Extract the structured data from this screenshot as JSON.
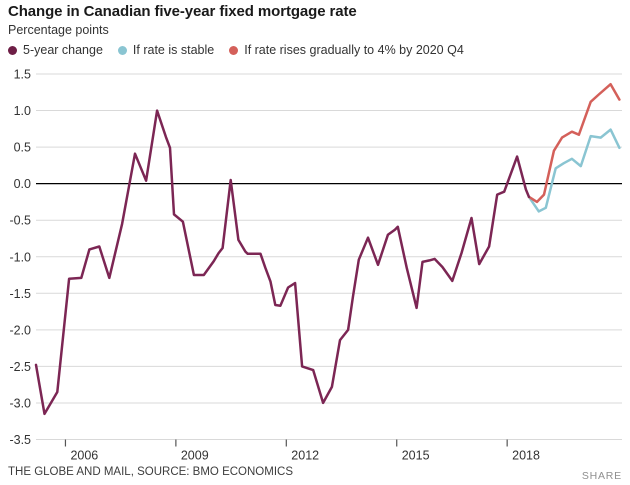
{
  "header": {
    "title": "Change in Canadian five-year fixed mortgage rate",
    "subtitle": "Percentage points"
  },
  "legend": [
    {
      "label": "5-year change",
      "color": "#6e1e46"
    },
    {
      "label": "If rate is stable",
      "color": "#8ac5d2"
    },
    {
      "label": "If rate rises gradually to 4% by 2020 Q4",
      "color": "#d4605a"
    }
  ],
  "footer": {
    "source": "THE GLOBE AND MAIL, SOURCE: BMO ECONOMICS",
    "share_label": "SHARE"
  },
  "chart_data": {
    "type": "line",
    "title": "Change in Canadian five-year fixed mortgage rate",
    "ylabel": "Percentage points",
    "xlim": [
      2005.2,
      2021.12
    ],
    "ylim": [
      -3.5,
      1.5
    ],
    "grid": "horizontal",
    "zero_line_color": "#000000",
    "gridline_color": "#d9d9d9",
    "tick_color": "#555555",
    "label_color": "#333333",
    "y_ticks": [
      {
        "v": 1.5,
        "label": "1.5"
      },
      {
        "v": 1.0,
        "label": "1.0"
      },
      {
        "v": 0.5,
        "label": "0.5"
      },
      {
        "v": 0.0,
        "label": "0.0"
      },
      {
        "v": -0.5,
        "label": "-0.5"
      },
      {
        "v": -1.0,
        "label": "-1.0"
      },
      {
        "v": -1.5,
        "label": "-1.5"
      },
      {
        "v": -2.0,
        "label": "-2.0"
      },
      {
        "v": -2.5,
        "label": "-2.5"
      },
      {
        "v": -3.0,
        "label": "-3.0"
      },
      {
        "v": -3.5,
        "label": "-3.5"
      }
    ],
    "x_ticks": [
      {
        "v": 2006,
        "label": "2006"
      },
      {
        "v": 2009,
        "label": "2009"
      },
      {
        "v": 2012,
        "label": "2012"
      },
      {
        "v": 2015,
        "label": "2015"
      },
      {
        "v": 2018,
        "label": "2018"
      }
    ],
    "series": [
      {
        "name": "If rate is stable",
        "color": "#8ac5d2",
        "points": [
          [
            2018.59,
            -0.18
          ],
          [
            2018.86,
            -0.38
          ],
          [
            2019.05,
            -0.33
          ],
          [
            2019.32,
            0.21
          ],
          [
            2019.54,
            0.28
          ],
          [
            2019.76,
            0.34
          ],
          [
            2020.0,
            0.24
          ],
          [
            2020.27,
            0.65
          ],
          [
            2020.54,
            0.63
          ],
          [
            2020.81,
            0.74
          ],
          [
            2021.05,
            0.49
          ]
        ]
      },
      {
        "name": "If rate rises gradually to 4% by 2020 Q4",
        "color": "#d4605a",
        "points": [
          [
            2018.59,
            -0.18
          ],
          [
            2018.81,
            -0.25
          ],
          [
            2019.0,
            -0.15
          ],
          [
            2019.27,
            0.45
          ],
          [
            2019.49,
            0.63
          ],
          [
            2019.76,
            0.71
          ],
          [
            2019.95,
            0.67
          ],
          [
            2020.27,
            1.12
          ],
          [
            2020.49,
            1.22
          ],
          [
            2020.81,
            1.36
          ],
          [
            2021.05,
            1.15
          ]
        ]
      },
      {
        "name": "5-year change",
        "color": "#7c2654",
        "points": [
          [
            2005.2,
            -2.48
          ],
          [
            2005.43,
            -3.15
          ],
          [
            2005.78,
            -2.85
          ],
          [
            2006.1,
            -1.3
          ],
          [
            2006.43,
            -1.29
          ],
          [
            2006.65,
            -0.9
          ],
          [
            2006.92,
            -0.86
          ],
          [
            2007.19,
            -1.29
          ],
          [
            2007.54,
            -0.55
          ],
          [
            2007.89,
            0.41
          ],
          [
            2008.19,
            0.04
          ],
          [
            2008.49,
            1.0
          ],
          [
            2008.73,
            0.64
          ],
          [
            2008.84,
            0.49
          ],
          [
            2008.95,
            -0.42
          ],
          [
            2009.19,
            -0.52
          ],
          [
            2009.49,
            -1.25
          ],
          [
            2009.76,
            -1.25
          ],
          [
            2010.03,
            -1.06
          ],
          [
            2010.16,
            -0.95
          ],
          [
            2010.27,
            -0.88
          ],
          [
            2010.49,
            0.05
          ],
          [
            2010.7,
            -0.77
          ],
          [
            2010.89,
            -0.93
          ],
          [
            2010.95,
            -0.96
          ],
          [
            2011.3,
            -0.96
          ],
          [
            2011.43,
            -1.15
          ],
          [
            2011.57,
            -1.34
          ],
          [
            2011.7,
            -1.66
          ],
          [
            2011.84,
            -1.67
          ],
          [
            2012.05,
            -1.42
          ],
          [
            2012.24,
            -1.36
          ],
          [
            2012.43,
            -2.5
          ],
          [
            2012.73,
            -2.55
          ],
          [
            2013.0,
            -3.0
          ],
          [
            2013.24,
            -2.78
          ],
          [
            2013.46,
            -2.14
          ],
          [
            2013.68,
            -2.0
          ],
          [
            2013.81,
            -1.55
          ],
          [
            2013.97,
            -1.04
          ],
          [
            2014.22,
            -0.74
          ],
          [
            2014.49,
            -1.11
          ],
          [
            2014.76,
            -0.7
          ],
          [
            2014.95,
            -0.63
          ],
          [
            2015.03,
            -0.59
          ],
          [
            2015.27,
            -1.15
          ],
          [
            2015.54,
            -1.7
          ],
          [
            2015.7,
            -1.07
          ],
          [
            2015.89,
            -1.05
          ],
          [
            2016.03,
            -1.03
          ],
          [
            2016.24,
            -1.14
          ],
          [
            2016.51,
            -1.33
          ],
          [
            2016.76,
            -0.95
          ],
          [
            2017.03,
            -0.47
          ],
          [
            2017.24,
            -1.1
          ],
          [
            2017.51,
            -0.86
          ],
          [
            2017.73,
            -0.15
          ],
          [
            2017.92,
            -0.11
          ],
          [
            2018.27,
            0.37
          ],
          [
            2018.51,
            -0.08
          ],
          [
            2018.59,
            -0.18
          ]
        ]
      }
    ]
  }
}
